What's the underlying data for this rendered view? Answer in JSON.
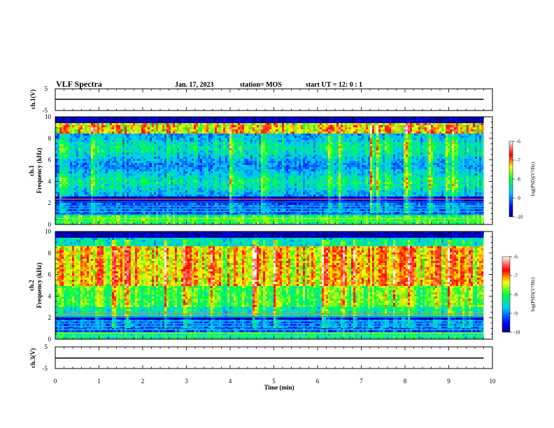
{
  "header": {
    "title": "VLF Spectra",
    "date": "Jan. 17, 2023",
    "station": "station= MOS",
    "start": "start  UT =   12: 0  : 1"
  },
  "chart_data": [
    {
      "type": "line",
      "panel": "ch1-waveform",
      "ylabel": "ch.1(V)",
      "ylim": [
        -5,
        5
      ],
      "yticks": [
        "5",
        "-5"
      ],
      "xlim": [
        0,
        10
      ],
      "series": [
        {
          "x": [
            0,
            9.8
          ],
          "values": [
            0,
            0
          ]
        }
      ]
    },
    {
      "type": "heatmap",
      "panel": "ch1-spectrogram",
      "ylabel": "ch.1\nFrequency (kHz)",
      "ylim": [
        0,
        10
      ],
      "yticks": [
        "0",
        "2",
        "4",
        "6",
        "8",
        "10"
      ],
      "xlim": [
        0,
        10
      ],
      "data_extent_min": 9.8,
      "colorbar": {
        "label": "log(PSD)(V²/Hz)",
        "range": [
          -10,
          -6
        ],
        "ticks": [
          "-6",
          "-7",
          "-8",
          "-9",
          "-10"
        ]
      }
    },
    {
      "type": "heatmap",
      "panel": "ch2-spectrogram",
      "ylabel": "ch.2\nFrequency (kHz)",
      "ylim": [
        0,
        10
      ],
      "yticks": [
        "0",
        "2",
        "4",
        "6",
        "8",
        "10"
      ],
      "xlim": [
        0,
        10
      ],
      "data_extent_min": 9.8,
      "colorbar": {
        "label": "log(PSD)(V²/Hz)",
        "range": [
          -10,
          -6
        ],
        "ticks": [
          "-6",
          "-7",
          "-8",
          "-9",
          "-10"
        ]
      }
    },
    {
      "type": "line",
      "panel": "ch3-waveform",
      "ylabel": "ch.3(V)",
      "ylim": [
        -5,
        5
      ],
      "yticks": [
        "5",
        "-5"
      ],
      "xlim": [
        0,
        10
      ],
      "series": [
        {
          "x": [
            0,
            9.8
          ],
          "values": [
            0,
            0
          ]
        }
      ]
    }
  ],
  "xaxis": {
    "label": "Time  (min)",
    "ticks": [
      "0",
      "1",
      "2",
      "3",
      "4",
      "5",
      "6",
      "7",
      "8",
      "9",
      "10"
    ]
  }
}
